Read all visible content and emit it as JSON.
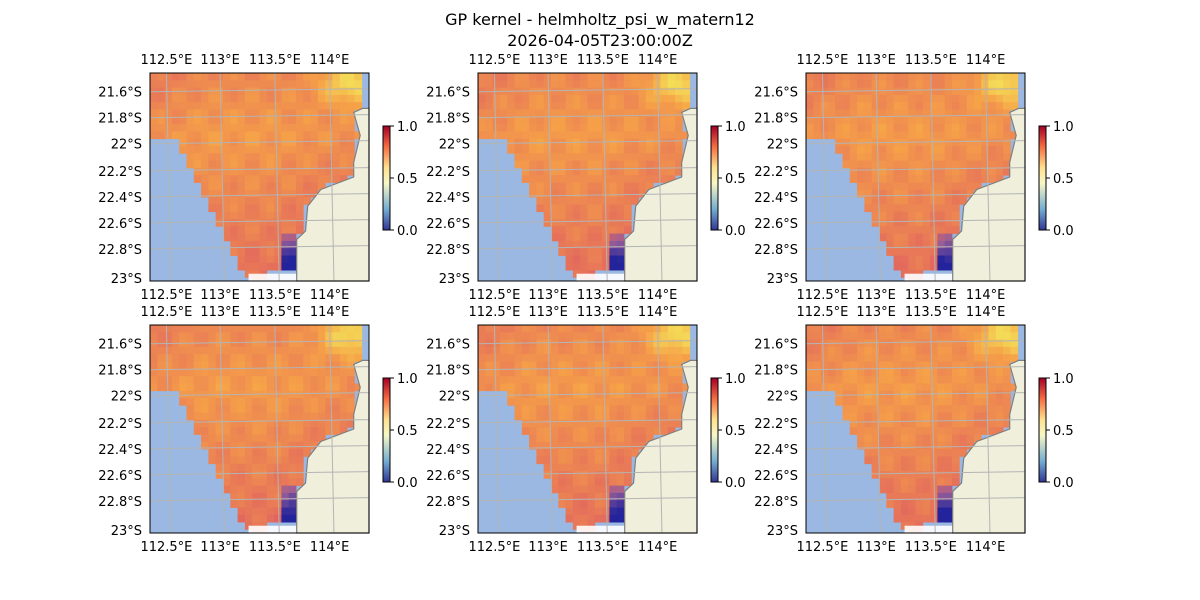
{
  "title": "GP kernel - helmholtz_psi_w_matern12",
  "subtitle": "2026-04-05T23:00:00Z",
  "chart_data": [
    {
      "type": "heatmap",
      "panel": 1,
      "xticks": [
        "112.5°E",
        "113°E",
        "113.5°E",
        "114°E"
      ],
      "yticks": [
        "21.6°S",
        "21.8°S",
        "22°S",
        "22.2°S",
        "22.4°S",
        "22.6°S",
        "22.8°S",
        "23°S"
      ],
      "colorbar": {
        "ticks": [
          "0.0",
          "0.5",
          "1.0"
        ],
        "range": [
          0,
          1
        ],
        "colormap": "RdYlBu_r"
      }
    },
    {
      "type": "heatmap",
      "panel": 2,
      "xticks": [
        "112.5°E",
        "113°E",
        "113.5°E",
        "114°E"
      ],
      "yticks": [
        "21.6°S",
        "21.8°S",
        "22°S",
        "22.2°S",
        "22.4°S",
        "22.6°S",
        "22.8°S",
        "23°S"
      ],
      "colorbar": {
        "ticks": [
          "0.0",
          "0.5",
          "1.0"
        ],
        "range": [
          0,
          1
        ],
        "colormap": "RdYlBu_r"
      }
    },
    {
      "type": "heatmap",
      "panel": 3,
      "xticks": [
        "112.5°E",
        "113°E",
        "113.5°E",
        "114°E"
      ],
      "yticks": [
        "21.6°S",
        "21.8°S",
        "22°S",
        "22.2°S",
        "22.4°S",
        "22.6°S",
        "22.8°S",
        "23°S"
      ],
      "colorbar": {
        "ticks": [
          "0.0",
          "0.5",
          "1.0"
        ],
        "range": [
          0,
          1
        ],
        "colormap": "RdYlBu_r"
      }
    },
    {
      "type": "heatmap",
      "panel": 4,
      "xticks": [
        "112.5°E",
        "113°E",
        "113.5°E",
        "114°E"
      ],
      "yticks": [
        "21.6°S",
        "21.8°S",
        "22°S",
        "22.2°S",
        "22.4°S",
        "22.6°S",
        "22.8°S",
        "23°S"
      ],
      "colorbar": {
        "ticks": [
          "0.0",
          "0.5",
          "1.0"
        ],
        "range": [
          0,
          1
        ],
        "colormap": "RdYlBu_r"
      }
    },
    {
      "type": "heatmap",
      "panel": 5,
      "xticks": [
        "112.5°E",
        "113°E",
        "113.5°E",
        "114°E"
      ],
      "yticks": [
        "21.6°S",
        "21.8°S",
        "22°S",
        "22.2°S",
        "22.4°S",
        "22.6°S",
        "22.8°S",
        "23°S"
      ],
      "colorbar": {
        "ticks": [
          "0.0",
          "0.5",
          "1.0"
        ],
        "range": [
          0,
          1
        ],
        "colormap": "RdYlBu_r"
      }
    },
    {
      "type": "heatmap",
      "panel": 6,
      "xticks": [
        "112.5°E",
        "113°E",
        "113.5°E",
        "114°E"
      ],
      "yticks": [
        "21.6°S",
        "21.8°S",
        "22°S",
        "22.2°S",
        "22.4°S",
        "22.6°S",
        "22.8°S",
        "23°S"
      ],
      "colorbar": {
        "ticks": [
          "0.0",
          "0.5",
          "1.0"
        ],
        "range": [
          0,
          1
        ],
        "colormap": "RdYlBu_r"
      }
    }
  ],
  "colors": {
    "ocean": "#9ab8e1",
    "land": "#efefdc",
    "coast": "#7f7f7f",
    "grid": "#b4b4b4",
    "field_high": "#f3ef5c",
    "field_mid": "#f6a248",
    "field_low": "#9a5e99",
    "field_min": "#23239a"
  }
}
